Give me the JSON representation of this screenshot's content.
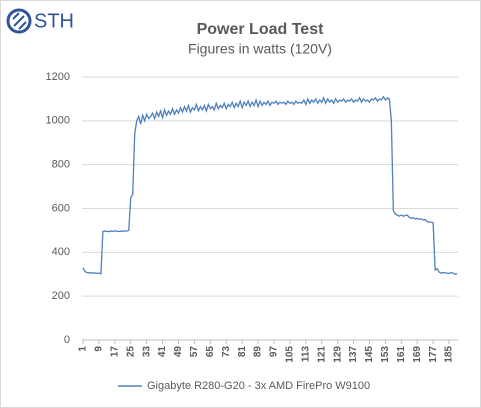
{
  "logo": "STH",
  "chart_data": {
    "type": "line",
    "title": "Power Load Test",
    "subtitle": "Figures in watts (120V)",
    "x": [
      1,
      2,
      3,
      4,
      5,
      6,
      7,
      8,
      9,
      10,
      11,
      12,
      13,
      14,
      15,
      16,
      17,
      18,
      19,
      20,
      21,
      22,
      23,
      24,
      25,
      26,
      27,
      28,
      29,
      30,
      31,
      32,
      33,
      34,
      35,
      36,
      37,
      38,
      39,
      40,
      41,
      42,
      43,
      44,
      45,
      46,
      47,
      48,
      49,
      50,
      51,
      52,
      53,
      54,
      55,
      56,
      57,
      58,
      59,
      60,
      61,
      62,
      63,
      64,
      65,
      66,
      67,
      68,
      69,
      70,
      71,
      72,
      73,
      74,
      75,
      76,
      77,
      78,
      79,
      80,
      81,
      82,
      83,
      84,
      85,
      86,
      87,
      88,
      89,
      90,
      91,
      92,
      93,
      94,
      95,
      96,
      97,
      98,
      99,
      100,
      101,
      102,
      103,
      104,
      105,
      106,
      107,
      108,
      109,
      110,
      111,
      112,
      113,
      114,
      115,
      116,
      117,
      118,
      119,
      120,
      121,
      122,
      123,
      124,
      125,
      126,
      127,
      128,
      129,
      130,
      131,
      132,
      133,
      134,
      135,
      136,
      137,
      138,
      139,
      140,
      141,
      142,
      143,
      144,
      145,
      146,
      147,
      148,
      149,
      150,
      151,
      152,
      153,
      154,
      155,
      156,
      157,
      158,
      159,
      160,
      161,
      162,
      163,
      164,
      165,
      166,
      167,
      168,
      169,
      170,
      171,
      172,
      173,
      174,
      175,
      176,
      177,
      178,
      179,
      180,
      181,
      182,
      183,
      184,
      185,
      186,
      187,
      188,
      189
    ],
    "series": [
      {
        "name": "Gigabyte R280-G20 - 3x AMD FirePro W9100",
        "color": "#4f81bd",
        "values": [
          330,
          312,
          308,
          306,
          307,
          305,
          306,
          304,
          305,
          302,
          495,
          497,
          496,
          494,
          497,
          495,
          498,
          496,
          495,
          497,
          496,
          498,
          497,
          500,
          650,
          665,
          940,
          1000,
          1020,
          985,
          1025,
          1000,
          1030,
          1010,
          1020,
          1035,
          1010,
          1040,
          1020,
          1045,
          1015,
          1050,
          1025,
          1045,
          1030,
          1055,
          1030,
          1050,
          1035,
          1060,
          1040,
          1065,
          1045,
          1070,
          1040,
          1060,
          1050,
          1075,
          1045,
          1065,
          1050,
          1070,
          1045,
          1075,
          1055,
          1065,
          1050,
          1080,
          1055,
          1070,
          1060,
          1080,
          1055,
          1075,
          1065,
          1085,
          1060,
          1080,
          1065,
          1090,
          1060,
          1085,
          1070,
          1090,
          1065,
          1085,
          1070,
          1095,
          1065,
          1090,
          1070,
          1085,
          1075,
          1090,
          1070,
          1085,
          1080,
          1090,
          1075,
          1085,
          1080,
          1085,
          1075,
          1090,
          1080,
          1085,
          1075,
          1090,
          1080,
          1085,
          1080,
          1095,
          1075,
          1100,
          1080,
          1095,
          1085,
          1100,
          1080,
          1095,
          1085,
          1105,
          1080,
          1100,
          1085,
          1095,
          1080,
          1100,
          1085,
          1095,
          1090,
          1100,
          1085,
          1095,
          1090,
          1100,
          1085,
          1095,
          1090,
          1105,
          1085,
          1100,
          1090,
          1095,
          1085,
          1100,
          1095,
          1105,
          1090,
          1100,
          1095,
          1110,
          1095,
          1105,
          1100,
          1000,
          590,
          575,
          570,
          565,
          570,
          565,
          568,
          570,
          560,
          555,
          558,
          552,
          555,
          550,
          553,
          548,
          550,
          540,
          538,
          538,
          535,
          320,
          325,
          310,
          305,
          308,
          306,
          305,
          304,
          307,
          305,
          300,
          303
        ]
      }
    ],
    "xlim": [
      0.5,
      189.5
    ],
    "xticks": [
      1,
      9,
      17,
      25,
      33,
      41,
      49,
      57,
      65,
      73,
      81,
      89,
      97,
      105,
      113,
      121,
      129,
      137,
      145,
      153,
      161,
      169,
      177,
      185
    ],
    "ylim": [
      0,
      1200
    ],
    "yticks": [
      0,
      200,
      400,
      600,
      800,
      1000,
      1200
    ],
    "grid": true,
    "legend": "bottom"
  }
}
